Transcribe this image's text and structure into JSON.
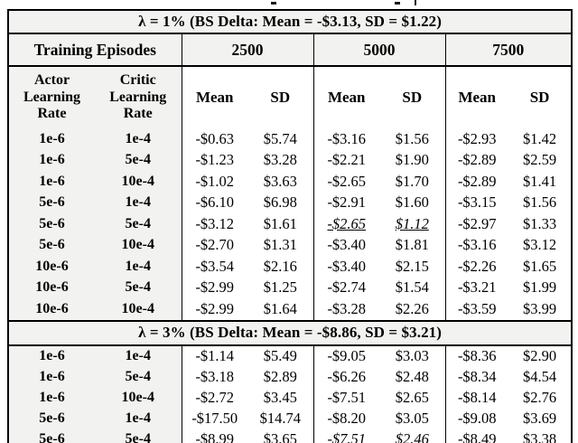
{
  "table": {
    "episodes_label": "Training Episodes",
    "episodes": [
      "2500",
      "5000",
      "7500"
    ],
    "col_headers": {
      "actor": "Actor Learning Rate",
      "critic": "Critic Learning Rate",
      "mean": "Mean",
      "sd": "SD"
    },
    "sections": [
      {
        "title": "λ = 1% (BS Delta: Mean = -$3.13, SD = $1.22)",
        "rows": [
          {
            "actor": "1e-6",
            "critic": "1e-4",
            "cells": [
              [
                "-$0.63",
                "$5.74"
              ],
              [
                "-$3.16",
                "$1.56"
              ],
              [
                "-$2.93",
                "$1.42"
              ]
            ],
            "em": -1
          },
          {
            "actor": "1e-6",
            "critic": "5e-4",
            "cells": [
              [
                "-$1.23",
                "$3.28"
              ],
              [
                "-$2.21",
                "$1.90"
              ],
              [
                "-$2.89",
                "$2.59"
              ]
            ],
            "em": -1
          },
          {
            "actor": "1e-6",
            "critic": "10e-4",
            "cells": [
              [
                "-$1.02",
                "$3.63"
              ],
              [
                "-$2.65",
                "$1.70"
              ],
              [
                "-$2.89",
                "$1.41"
              ]
            ],
            "em": -1
          },
          {
            "actor": "5e-6",
            "critic": "1e-4",
            "cells": [
              [
                "-$6.10",
                "$6.98"
              ],
              [
                "-$2.91",
                "$1.60"
              ],
              [
                "-$3.15",
                "$1.56"
              ]
            ],
            "em": -1
          },
          {
            "actor": "5e-6",
            "critic": "5e-4",
            "cells": [
              [
                "-$3.12",
                "$1.61"
              ],
              [
                "-$2.65",
                "$1.12"
              ],
              [
                "-$2.97",
                "$1.33"
              ]
            ],
            "em": 1
          },
          {
            "actor": "5e-6",
            "critic": "10e-4",
            "cells": [
              [
                "-$2.70",
                "$1.31"
              ],
              [
                "-$3.40",
                "$1.81"
              ],
              [
                "-$3.16",
                "$3.12"
              ]
            ],
            "em": -1
          },
          {
            "actor": "10e-6",
            "critic": "1e-4",
            "cells": [
              [
                "-$3.54",
                "$2.16"
              ],
              [
                "-$3.40",
                "$2.15"
              ],
              [
                "-$2.26",
                "$1.65"
              ]
            ],
            "em": -1
          },
          {
            "actor": "10e-6",
            "critic": "5e-4",
            "cells": [
              [
                "-$2.99",
                "$1.25"
              ],
              [
                "-$2.74",
                "$1.54"
              ],
              [
                "-$3.21",
                "$1.99"
              ]
            ],
            "em": -1
          },
          {
            "actor": "10e-6",
            "critic": "10e-4",
            "cells": [
              [
                "-$2.99",
                "$1.64"
              ],
              [
                "-$3.28",
                "$2.26"
              ],
              [
                "-$3.59",
                "$3.99"
              ]
            ],
            "em": -1
          }
        ]
      },
      {
        "title": "λ = 3% (BS Delta: Mean = -$8.86, SD = $3.21)",
        "rows": [
          {
            "actor": "1e-6",
            "critic": "1e-4",
            "cells": [
              [
                "-$1.14",
                "$5.49"
              ],
              [
                "-$9.05",
                "$3.03"
              ],
              [
                "-$8.36",
                "$2.90"
              ]
            ],
            "em": -1
          },
          {
            "actor": "1e-6",
            "critic": "5e-4",
            "cells": [
              [
                "-$3.18",
                "$2.89"
              ],
              [
                "-$6.26",
                "$2.48"
              ],
              [
                "-$8.34",
                "$4.54"
              ]
            ],
            "em": -1
          },
          {
            "actor": "1e-6",
            "critic": "10e-4",
            "cells": [
              [
                "-$2.72",
                "$3.45"
              ],
              [
                "-$7.51",
                "$2.65"
              ],
              [
                "-$8.14",
                "$2.76"
              ]
            ],
            "em": -1
          },
          {
            "actor": "5e-6",
            "critic": "1e-4",
            "cells": [
              [
                "-$17.50",
                "$14.74"
              ],
              [
                "-$8.20",
                "$3.05"
              ],
              [
                "-$9.08",
                "$3.69"
              ]
            ],
            "em": -1
          },
          {
            "actor": "5e-6",
            "critic": "5e-4",
            "cells": [
              [
                "-$8.99",
                "$3.65"
              ],
              [
                "-$7.51",
                "$2.46"
              ],
              [
                "-$8.49",
                "$3.38"
              ]
            ],
            "em": 1
          }
        ]
      }
    ]
  }
}
